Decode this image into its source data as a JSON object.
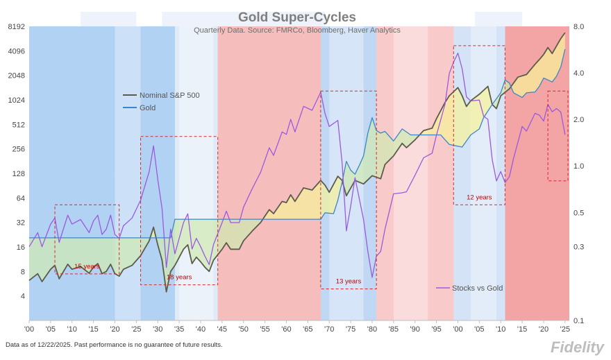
{
  "chart_data": {
    "type": "line",
    "title": "Gold Super-Cycles",
    "subtitle": "Quarterly  Data.  Source: FMRCo, Bloomberg, Haver Analytics",
    "footnote": "Data as of 12/22/2025. Past performance is no guarantee of future results.",
    "logo_text": "Fidelity",
    "x_range": [
      1900,
      2026
    ],
    "x_tick_labels": [
      "'00",
      "'05",
      "'10",
      "'15",
      "'20",
      "'25",
      "'30",
      "'35",
      "'40",
      "'45",
      "'50",
      "'55",
      "'60",
      "'65",
      "'70",
      "'75",
      "'80",
      "'85",
      "'90",
      "'95",
      "'00",
      "'05",
      "'10",
      "'15",
      "'20",
      "'25"
    ],
    "left_axis": {
      "scale": "log2",
      "range": [
        2,
        8192
      ],
      "tick_labels": [
        "4",
        "8",
        "16",
        "32",
        "64",
        "128",
        "256",
        "512",
        "1024",
        "2048",
        "4096",
        "8192"
      ]
    },
    "right_axis": {
      "scale": "log",
      "range": [
        0.1,
        8
      ],
      "tick_labels": [
        "0.1",
        "0.3",
        "0.5",
        "1.0",
        "2.0",
        "4.0",
        "8.0"
      ]
    },
    "legend_position": "left-center",
    "grid": false,
    "regimes": [
      {
        "from": 1900,
        "to": 1934,
        "type": "gold-bull",
        "color": "#a9cdf2"
      },
      {
        "from": 1934,
        "to": 1944,
        "type": "fade",
        "color": "#dde9f7"
      },
      {
        "from": 1944,
        "to": 1968,
        "type": "stock-bull",
        "color": "#f5b6b6"
      },
      {
        "from": 1968,
        "to": 1981,
        "type": "gold-bull",
        "color": "#b9d3f2"
      },
      {
        "from": 1981,
        "to": 1999,
        "type": "stock-bull",
        "color": "#f7c4c4"
      },
      {
        "from": 1999,
        "to": 2011,
        "type": "gold-bull",
        "color": "#cfe0f5"
      },
      {
        "from": 2011,
        "to": 2026,
        "type": "stock-bull",
        "color": "#f29a9a"
      }
    ],
    "series": [
      {
        "name": "Nominal S&P 500",
        "axis": "left",
        "color": "#5b5b4b",
        "points": [
          [
            1900,
            6.2
          ],
          [
            1902,
            7.5
          ],
          [
            1903,
            6.0
          ],
          [
            1905,
            8.5
          ],
          [
            1906,
            9.5
          ],
          [
            1907,
            6.5
          ],
          [
            1909,
            9.8
          ],
          [
            1910,
            8.5
          ],
          [
            1912,
            9.2
          ],
          [
            1914,
            7.6
          ],
          [
            1915,
            9.0
          ],
          [
            1916,
            10.0
          ],
          [
            1917,
            7.5
          ],
          [
            1918,
            8.0
          ],
          [
            1919,
            9.8
          ],
          [
            1920,
            7.5
          ],
          [
            1921,
            7.0
          ],
          [
            1922,
            8.5
          ],
          [
            1924,
            9.5
          ],
          [
            1926,
            12.5
          ],
          [
            1928,
            19.0
          ],
          [
            1929,
            28.0
          ],
          [
            1930,
            17.0
          ],
          [
            1931,
            11.0
          ],
          [
            1932,
            4.5
          ],
          [
            1933,
            8.0
          ],
          [
            1934,
            9.5
          ],
          [
            1936,
            15.0
          ],
          [
            1937,
            17.0
          ],
          [
            1938,
            10.0
          ],
          [
            1939,
            12.0
          ],
          [
            1940,
            10.5
          ],
          [
            1941,
            9.0
          ],
          [
            1942,
            8.0
          ],
          [
            1943,
            11.0
          ],
          [
            1945,
            15.0
          ],
          [
            1946,
            18.0
          ],
          [
            1947,
            15.0
          ],
          [
            1949,
            15.0
          ],
          [
            1950,
            19.0
          ],
          [
            1952,
            25.0
          ],
          [
            1954,
            32.0
          ],
          [
            1956,
            46.0
          ],
          [
            1957,
            41.0
          ],
          [
            1959,
            58.0
          ],
          [
            1960,
            56.0
          ],
          [
            1961,
            70.0
          ],
          [
            1962,
            58.0
          ],
          [
            1964,
            85.0
          ],
          [
            1966,
            80.0
          ],
          [
            1968,
            105.0
          ],
          [
            1969,
            92.0
          ],
          [
            1970,
            75.0
          ],
          [
            1972,
            118.0
          ],
          [
            1973,
            105.0
          ],
          [
            1974,
            68.0
          ],
          [
            1976,
            105.0
          ],
          [
            1978,
            95.0
          ],
          [
            1980,
            120.0
          ],
          [
            1982,
            110.0
          ],
          [
            1983,
            165.0
          ],
          [
            1985,
            210.0
          ],
          [
            1987,
            300.0
          ],
          [
            1988,
            265.0
          ],
          [
            1990,
            330.0
          ],
          [
            1992,
            430.0
          ],
          [
            1994,
            460.0
          ],
          [
            1995,
            600.0
          ],
          [
            1997,
            950.0
          ],
          [
            1998,
            1150.0
          ],
          [
            2000,
            1450.0
          ],
          [
            2001,
            1150.0
          ],
          [
            2002,
            850.0
          ],
          [
            2003,
            1000.0
          ],
          [
            2005,
            1200.0
          ],
          [
            2007,
            1500.0
          ],
          [
            2008,
            900.0
          ],
          [
            2009,
            800.0
          ],
          [
            2010,
            1150.0
          ],
          [
            2012,
            1400.0
          ],
          [
            2014,
            1950.0
          ],
          [
            2016,
            2100.0
          ],
          [
            2018,
            2800.0
          ],
          [
            2019,
            3200.0
          ],
          [
            2020,
            3700.0
          ],
          [
            2021,
            4500.0
          ],
          [
            2022,
            3800.0
          ],
          [
            2023,
            4700.0
          ],
          [
            2024,
            5800.0
          ],
          [
            2025,
            6850.0
          ]
        ]
      },
      {
        "name": "Gold",
        "axis": "left",
        "color": "#3b86c8",
        "points": [
          [
            1900,
            20.67
          ],
          [
            1933,
            20.67
          ],
          [
            1934,
            35.0
          ],
          [
            1968,
            35.0
          ],
          [
            1969,
            42.0
          ],
          [
            1971,
            41.0
          ],
          [
            1972,
            60.0
          ],
          [
            1973,
            100.0
          ],
          [
            1974,
            180.0
          ],
          [
            1975,
            140.0
          ],
          [
            1976,
            125.0
          ],
          [
            1977,
            160.0
          ],
          [
            1978,
            210.0
          ],
          [
            1979,
            400.0
          ],
          [
            1980,
            620.0
          ],
          [
            1981,
            430.0
          ],
          [
            1982,
            400.0
          ],
          [
            1983,
            420.0
          ],
          [
            1985,
            320.0
          ],
          [
            1987,
            450.0
          ],
          [
            1989,
            380.0
          ],
          [
            1993,
            380.0
          ],
          [
            1996,
            380.0
          ],
          [
            1998,
            290.0
          ],
          [
            2001,
            270.0
          ],
          [
            2003,
            380.0
          ],
          [
            2005,
            450.0
          ],
          [
            2006,
            620.0
          ],
          [
            2008,
            900.0
          ],
          [
            2010,
            1250.0
          ],
          [
            2011,
            1800.0
          ],
          [
            2012,
            1650.0
          ],
          [
            2013,
            1250.0
          ],
          [
            2015,
            1100.0
          ],
          [
            2016,
            1250.0
          ],
          [
            2018,
            1280.0
          ],
          [
            2019,
            1500.0
          ],
          [
            2020,
            1900.0
          ],
          [
            2021,
            1800.0
          ],
          [
            2022,
            1700.0
          ],
          [
            2023,
            2000.0
          ],
          [
            2024,
            2600.0
          ],
          [
            2025,
            4300.0
          ]
        ]
      },
      {
        "name": "Stocks vs Gold",
        "axis": "right",
        "color": "#9b59e0",
        "points": [
          [
            1900,
            0.3
          ],
          [
            1902,
            0.37
          ],
          [
            1903,
            0.3
          ],
          [
            1905,
            0.42
          ],
          [
            1906,
            0.46
          ],
          [
            1907,
            0.32
          ],
          [
            1909,
            0.48
          ],
          [
            1910,
            0.42
          ],
          [
            1912,
            0.45
          ],
          [
            1914,
            0.37
          ],
          [
            1915,
            0.44
          ],
          [
            1916,
            0.48
          ],
          [
            1917,
            0.36
          ],
          [
            1918,
            0.39
          ],
          [
            1919,
            0.48
          ],
          [
            1920,
            0.36
          ],
          [
            1921,
            0.34
          ],
          [
            1922,
            0.41
          ],
          [
            1924,
            0.46
          ],
          [
            1926,
            0.6
          ],
          [
            1928,
            0.92
          ],
          [
            1929,
            1.35
          ],
          [
            1930,
            0.82
          ],
          [
            1931,
            0.53
          ],
          [
            1932,
            0.22
          ],
          [
            1933,
            0.39
          ],
          [
            1934,
            0.27
          ],
          [
            1936,
            0.43
          ],
          [
            1937,
            0.49
          ],
          [
            1938,
            0.29
          ],
          [
            1939,
            0.34
          ],
          [
            1940,
            0.3
          ],
          [
            1941,
            0.26
          ],
          [
            1942,
            0.23
          ],
          [
            1943,
            0.31
          ],
          [
            1945,
            0.43
          ],
          [
            1946,
            0.51
          ],
          [
            1947,
            0.43
          ],
          [
            1949,
            0.43
          ],
          [
            1950,
            0.54
          ],
          [
            1952,
            0.71
          ],
          [
            1954,
            0.91
          ],
          [
            1956,
            1.31
          ],
          [
            1957,
            1.17
          ],
          [
            1959,
            1.66
          ],
          [
            1960,
            1.6
          ],
          [
            1961,
            2.0
          ],
          [
            1962,
            1.66
          ],
          [
            1964,
            2.43
          ],
          [
            1966,
            2.29
          ],
          [
            1968,
            3.0
          ],
          [
            1969,
            2.19
          ],
          [
            1970,
            1.8
          ],
          [
            1972,
            1.97
          ],
          [
            1973,
            1.05
          ],
          [
            1974,
            0.38
          ],
          [
            1975,
            0.55
          ],
          [
            1976,
            0.84
          ],
          [
            1978,
            0.45
          ],
          [
            1979,
            0.28
          ],
          [
            1980,
            0.19
          ],
          [
            1981,
            0.26
          ],
          [
            1982,
            0.28
          ],
          [
            1983,
            0.39
          ],
          [
            1985,
            0.66
          ],
          [
            1987,
            0.67
          ],
          [
            1988,
            0.68
          ],
          [
            1990,
            0.87
          ],
          [
            1992,
            1.13
          ],
          [
            1994,
            1.21
          ],
          [
            1995,
            1.58
          ],
          [
            1997,
            2.5
          ],
          [
            1998,
            3.97
          ],
          [
            1999,
            4.7
          ],
          [
            2000,
            5.37
          ],
          [
            2001,
            4.26
          ],
          [
            2002,
            2.8
          ],
          [
            2003,
            2.63
          ],
          [
            2005,
            2.67
          ],
          [
            2006,
            2.1
          ],
          [
            2007,
            2.0
          ],
          [
            2008,
            1.1
          ],
          [
            2009,
            0.8
          ],
          [
            2010,
            0.92
          ],
          [
            2011,
            0.78
          ],
          [
            2012,
            0.85
          ],
          [
            2013,
            1.12
          ],
          [
            2015,
            1.8
          ],
          [
            2016,
            1.68
          ],
          [
            2018,
            2.19
          ],
          [
            2019,
            2.13
          ],
          [
            2020,
            1.95
          ],
          [
            2021,
            2.5
          ],
          [
            2022,
            2.24
          ],
          [
            2023,
            2.35
          ],
          [
            2024,
            2.23
          ],
          [
            2025,
            1.59
          ]
        ]
      }
    ],
    "annotations": [
      {
        "label": "15 years",
        "from": 1906,
        "to": 1921,
        "y_top": 0.56,
        "y_bottom": 0.2
      },
      {
        "label": "18 years",
        "from": 1926,
        "to": 1944,
        "y_top": 1.55,
        "y_bottom": 0.17
      },
      {
        "label": "13 years",
        "from": 1968,
        "to": 1981,
        "y_top": 3.05,
        "y_bottom": 0.16
      },
      {
        "label": "12 years",
        "from": 1999,
        "to": 2011,
        "y_top": 6.0,
        "y_bottom": 0.56
      },
      {
        "label": "",
        "from": 2021,
        "to": 2026,
        "y_top": 3.05,
        "y_bottom": 0.8
      }
    ]
  }
}
